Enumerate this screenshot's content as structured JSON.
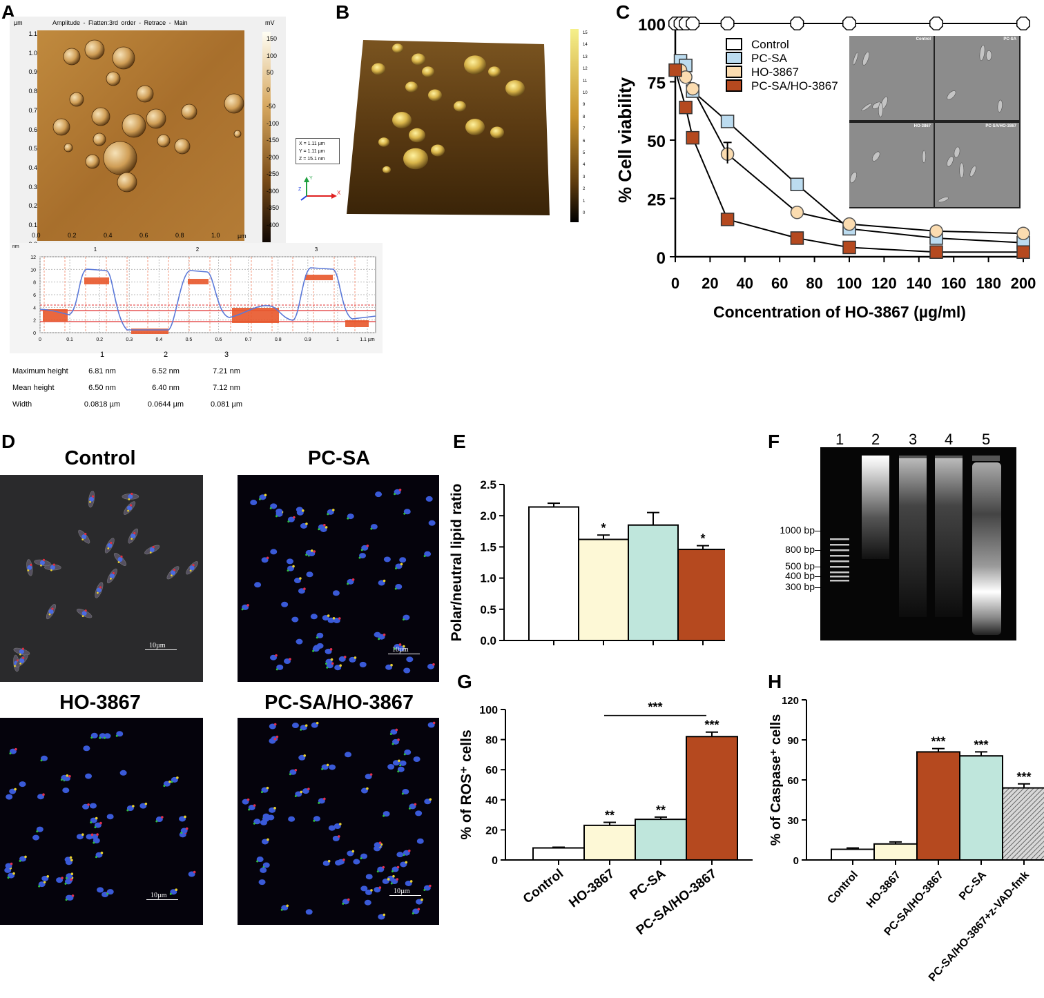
{
  "panels": {
    "A": {
      "label": "A",
      "afm_header": [
        "Amplitude",
        "Flatten:3rd order",
        "Retrace",
        "Main"
      ],
      "y_unit": "µm",
      "x_unit": "µm",
      "colorbar_unit": "mV",
      "colorbar_ticks": [
        "150",
        "100",
        "50",
        "0",
        "-50",
        "-100",
        "-150",
        "-200",
        "-250",
        "-300",
        "-350",
        "-400"
      ],
      "y_ticks": [
        "1.1",
        "1.0",
        "0.9",
        "0.8",
        "0.7",
        "0.6",
        "0.5",
        "0.4",
        "0.3",
        "0.2",
        "0.1",
        "0.0"
      ],
      "x_ticks": [
        "0.0",
        "0.2",
        "0.4",
        "0.6",
        "0.8",
        "1.0"
      ],
      "scale_box": [
        "X = 1.11 µm",
        "Y = 1.11 µm",
        "Z = 15.1 nm"
      ],
      "axis_x_letter": "X",
      "axis_y_letter": "Y",
      "axis_z_letter": "Z",
      "profile": {
        "y_unit": "nm",
        "x_unit": "µm",
        "y_ticks": [
          "12",
          "10",
          "8",
          "6",
          "4",
          "2",
          "0"
        ],
        "x_ticks": [
          "0",
          "0.1",
          "0.2",
          "0.3",
          "0.4",
          "0.5",
          "0.6",
          "0.7",
          "0.8",
          "0.9",
          "1",
          "1.1 µm"
        ],
        "markers": [
          "1",
          "2",
          "3"
        ]
      },
      "table": {
        "columns": [
          "",
          "1",
          "2",
          "3"
        ],
        "rows": [
          {
            "label": "Maximum height",
            "values": [
              "6.81 nm",
              "6.52 nm",
              "7.21 nm"
            ]
          },
          {
            "label": "Mean height",
            "values": [
              "6.50 nm",
              "6.40 nm",
              "7.12 nm"
            ]
          },
          {
            "label": "Width",
            "values": [
              "0.0818 µm",
              "0.0644 µm",
              "0.081 µm"
            ]
          }
        ]
      }
    },
    "B": {
      "label": "B",
      "colorbar_unit": "nm",
      "colorbar_ticks": [
        "15",
        "14",
        "13",
        "12",
        "11",
        "10",
        "9",
        "8",
        "7",
        "6",
        "5",
        "4",
        "3",
        "2",
        "1",
        "0"
      ]
    },
    "C": {
      "label": "C",
      "inset_labels": [
        "Control",
        "PC-SA",
        "HO-3867",
        "PC-SA/HO-3867"
      ]
    },
    "D": {
      "label": "D",
      "images": [
        "Control",
        "PC-SA",
        "HO-3867",
        "PC-SA/HO-3867"
      ],
      "scalebar": "10µm"
    },
    "E": {
      "label": "E"
    },
    "F": {
      "label": "F",
      "lanes": [
        "1",
        "2",
        "3",
        "4",
        "5"
      ],
      "ladder": [
        "1000 bp",
        "800 bp",
        "500 bp",
        "400 bp",
        "300 bp"
      ]
    },
    "G": {
      "label": "G"
    },
    "H": {
      "label": "H"
    }
  },
  "chart_data": [
    {
      "id": "C",
      "type": "line",
      "xlabel": "Concentration of HO-3867 (µg/ml)",
      "ylabel": "% Cell viability",
      "xlim": [
        0,
        200
      ],
      "ylim": [
        0,
        100
      ],
      "x_ticks": [
        "0",
        "20",
        "40",
        "60",
        "80",
        "100",
        "120",
        "140",
        "160",
        "180",
        "200"
      ],
      "y_ticks": [
        "0",
        "25",
        "50",
        "75",
        "100"
      ],
      "legend_placement": "top-left",
      "series": [
        {
          "name": "Control",
          "color": "#ffffff",
          "marker": "hexagon",
          "x": [
            0,
            3,
            6,
            10,
            30,
            70,
            100,
            150,
            200
          ],
          "y": [
            100,
            100,
            100,
            100,
            100,
            100,
            100,
            100,
            100
          ]
        },
        {
          "name": "PC-SA",
          "color": "#bcdcf0",
          "marker": "square",
          "x": [
            3,
            6,
            10,
            30,
            70,
            100,
            150,
            200
          ],
          "y": [
            84,
            82,
            71,
            58,
            31,
            12,
            8,
            6
          ]
        },
        {
          "name": "HO-3867",
          "color": "#fbdcb0",
          "marker": "circle",
          "x": [
            3,
            6,
            10,
            30,
            70,
            100,
            150,
            200
          ],
          "y": [
            80,
            77,
            72,
            44,
            19,
            14,
            11,
            10
          ]
        },
        {
          "name": "PC-SA/HO-3867",
          "color": "#b5491f",
          "marker": "square",
          "x": [
            0,
            6,
            10,
            30,
            70,
            100,
            150,
            200
          ],
          "y": [
            80,
            64,
            51,
            16,
            8,
            4,
            2,
            2
          ]
        }
      ]
    },
    {
      "id": "E",
      "type": "bar",
      "ylabel": "Polar/neutral lipid ratio",
      "ylim": [
        0,
        2.5
      ],
      "y_ticks": [
        "0.0",
        "0.5",
        "1.0",
        "1.5",
        "2.0",
        "2.5"
      ],
      "values": [
        2.14,
        1.62,
        1.85,
        1.46
      ],
      "errors": [
        0.06,
        0.07,
        0.2,
        0.06
      ],
      "colors": [
        "#ffffff",
        "#fdf8d6",
        "#bfe6dc",
        "#b5491f"
      ],
      "annotations": [
        "",
        "*",
        "",
        "*"
      ]
    },
    {
      "id": "G",
      "type": "bar",
      "ylabel": "% of ROS⁺ cells",
      "categories": [
        "Control",
        "HO-3867",
        "PC-SA",
        "PC-SA/HO-3867"
      ],
      "ylim": [
        0,
        100
      ],
      "y_ticks": [
        "0",
        "20",
        "40",
        "60",
        "80",
        "100"
      ],
      "values": [
        8,
        23,
        27,
        82
      ],
      "errors": [
        0.5,
        2,
        1.5,
        3
      ],
      "colors": [
        "#ffffff",
        "#fdf8d6",
        "#bfe6dc",
        "#b5491f"
      ],
      "annotations": [
        "",
        "**",
        "**",
        "***"
      ],
      "bracket_label": "***"
    },
    {
      "id": "H",
      "type": "bar",
      "ylabel": "% of Caspase⁺ cells",
      "categories": [
        "Control",
        "HO-3867",
        "PC-SA/HO-3867",
        "PC-SA",
        "PC-SA/HO-3867+z-VAD-fmk"
      ],
      "ylim": [
        0,
        120
      ],
      "y_ticks": [
        "0",
        "30",
        "60",
        "90",
        "120"
      ],
      "values": [
        8,
        12,
        81,
        78,
        54
      ],
      "errors": [
        1,
        1.5,
        2.5,
        3,
        3
      ],
      "colors": [
        "#ffffff",
        "#fdf8d6",
        "#b5491f",
        "#bfe6dc",
        "hatch"
      ],
      "annotations": [
        "",
        "",
        "***",
        "***",
        "***"
      ]
    }
  ]
}
